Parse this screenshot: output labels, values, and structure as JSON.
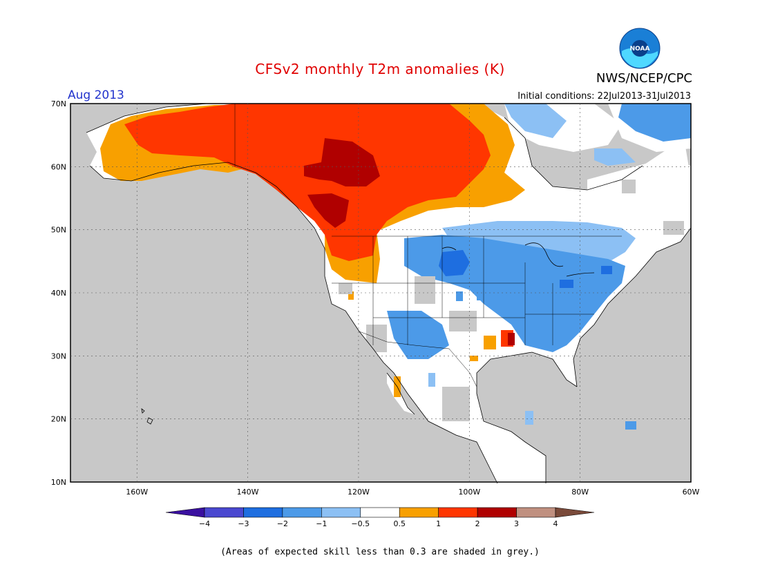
{
  "header": {
    "title": "CFSv2 monthly T2m anomalies (K)",
    "agency": "NWS/NCEP/CPC",
    "month": "Aug 2013",
    "initial_conditions": "Initial conditions: 22Jul2013-31Jul2013",
    "logo_text": "NOAA"
  },
  "map": {
    "lat_labels": [
      "70N",
      "60N",
      "50N",
      "40N",
      "30N",
      "20N",
      "10N"
    ],
    "lon_labels": [
      "160W",
      "140W",
      "120W",
      "100W",
      "80W",
      "60W"
    ],
    "colors": {
      "ocean_grey": "#c8c8c8",
      "land_white": "#ffffff",
      "neg4": "#3a10a0",
      "neg3": "#4a48d0",
      "neg2": "#1e6ee0",
      "neg1": "#4c9ae8",
      "neg05": "#8cc0f4",
      "pos05": "#f8a000",
      "pos1": "#ff3600",
      "pos2": "#b00000",
      "pos3": "#c09080",
      "pos4": "#7a4a3a"
    }
  },
  "colorbar": {
    "labels": [
      "−4",
      "−3",
      "−2",
      "−1",
      "−0.5",
      "0.5",
      "1",
      "2",
      "3",
      "4"
    ],
    "segments": [
      "#3a10a0",
      "#4a48d0",
      "#1e6ee0",
      "#4c9ae8",
      "#8cc0f4",
      "#ffffff",
      "#f8a000",
      "#ff3600",
      "#b00000",
      "#c09080",
      "#7a4a3a"
    ]
  },
  "footnote": "(Areas of expected skill less than 0.3 are shaded in grey.)"
}
